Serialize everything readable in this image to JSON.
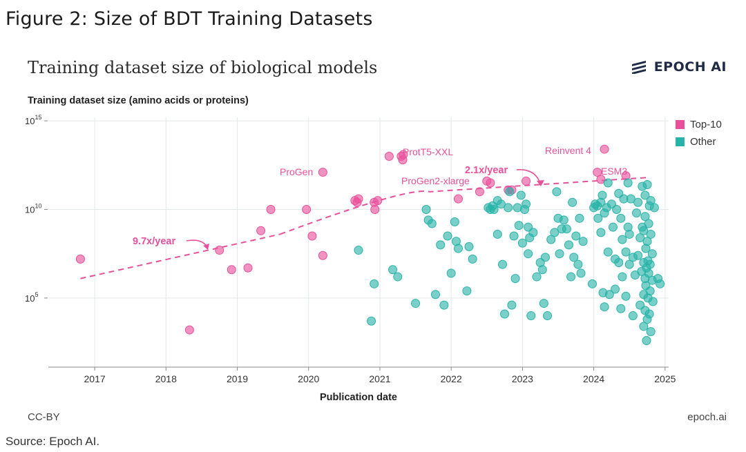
{
  "figure_title": "Figure 2: Size of BDT Training Datasets",
  "source_note": "Source: Epoch AI.",
  "brand_name": "EPOCH AI",
  "license": "CC-BY",
  "site": "epoch.ai",
  "colors": {
    "top10": "#e8509b",
    "other": "#28b3a8",
    "grid": "#e3e8e8",
    "axis": "#888888"
  },
  "chart_data": {
    "type": "scatter",
    "title": "Training dataset size of biological models",
    "ylabel": "Training dataset size (amino acids or proteins)",
    "xlabel": "Publication date",
    "yscale": "log10",
    "xlim": [
      2016.35,
      2025.05
    ],
    "ylim_log10": [
      1.1,
      15.2
    ],
    "x_ticks": [
      2017,
      2018,
      2019,
      2020,
      2021,
      2022,
      2023,
      2024,
      2025
    ],
    "x_tick_labels": [
      "2017",
      "2018",
      "2019",
      "2020",
      "2021",
      "2022",
      "2023",
      "2024",
      "2025"
    ],
    "y_ticks_log10": [
      5,
      10,
      15
    ],
    "y_tick_bases": [
      "10",
      "10",
      "10"
    ],
    "y_tick_exponents": [
      "5",
      "10",
      "15"
    ],
    "legend": [
      {
        "key": "top10",
        "label": "Top-10"
      },
      {
        "key": "other",
        "label": "Other"
      }
    ],
    "trend_lines": [
      {
        "label": "9.7x/year",
        "points": [
          [
            2016.8,
            6.1
          ],
          [
            2019.6,
            8.6
          ]
        ]
      },
      {
        "label": "2.1x/year",
        "points": [
          [
            2019.6,
            8.6
          ],
          [
            2021.7,
            11.0
          ],
          [
            2024.75,
            11.8
          ]
        ]
      }
    ],
    "annotations": [
      {
        "text": "ProGen",
        "x": 2020.2,
        "y_log10": 12.0
      },
      {
        "text": "ProtT5-XXL",
        "x": 2021.3,
        "y_log10": 13.4
      },
      {
        "text": "ProGen2-xlarge",
        "x": 2022.5,
        "y_log10": 11.8
      },
      {
        "text": "Reinvent 4",
        "x": 2024.1,
        "y_log10": 13.5
      },
      {
        "text": "ESM3",
        "x": 2024.0,
        "y_log10": 12.6
      }
    ],
    "series": [
      {
        "name": "Top-10",
        "key": "top10",
        "points": [
          [
            2016.8,
            7.2
          ],
          [
            2018.33,
            3.2
          ],
          [
            2018.75,
            7.7
          ],
          [
            2018.92,
            6.6
          ],
          [
            2019.15,
            6.7
          ],
          [
            2019.33,
            8.8
          ],
          [
            2019.47,
            10.0
          ],
          [
            2019.97,
            10.0
          ],
          [
            2020.05,
            8.5
          ],
          [
            2020.2,
            7.4
          ],
          [
            2020.2,
            12.1
          ],
          [
            2020.65,
            10.5
          ],
          [
            2020.68,
            10.4
          ],
          [
            2020.7,
            10.6
          ],
          [
            2020.92,
            10.4
          ],
          [
            2020.93,
            10.0
          ],
          [
            2020.97,
            10.5
          ],
          [
            2021.13,
            13.0
          ],
          [
            2021.3,
            13.0
          ],
          [
            2021.32,
            12.8
          ],
          [
            2021.33,
            13.1
          ],
          [
            2022.1,
            10.6
          ],
          [
            2022.4,
            11.0
          ],
          [
            2022.5,
            11.6
          ],
          [
            2022.55,
            11.5
          ],
          [
            2022.8,
            11.1
          ],
          [
            2022.85,
            11.1
          ],
          [
            2023.05,
            11.6
          ],
          [
            2024.05,
            12.1
          ],
          [
            2024.1,
            11.7
          ],
          [
            2024.15,
            13.4
          ],
          [
            2024.45,
            11.9
          ]
        ]
      },
      {
        "name": "Other",
        "key": "other",
        "points": [
          [
            2020.7,
            7.7
          ],
          [
            2020.88,
            3.7
          ],
          [
            2020.92,
            5.8
          ],
          [
            2021.18,
            6.6
          ],
          [
            2021.25,
            6.2
          ],
          [
            2021.5,
            4.7
          ],
          [
            2021.65,
            10.0
          ],
          [
            2021.68,
            9.4
          ],
          [
            2021.73,
            9.2
          ],
          [
            2021.78,
            5.2
          ],
          [
            2021.85,
            8.0
          ],
          [
            2021.9,
            4.6
          ],
          [
            2021.95,
            8.5
          ],
          [
            2022.0,
            6.4
          ],
          [
            2022.05,
            9.3
          ],
          [
            2022.07,
            8.2
          ],
          [
            2022.1,
            7.8
          ],
          [
            2022.22,
            5.4
          ],
          [
            2022.25,
            7.9
          ],
          [
            2022.3,
            7.2
          ],
          [
            2022.52,
            10.1
          ],
          [
            2022.55,
            10.0
          ],
          [
            2022.58,
            10.2
          ],
          [
            2022.6,
            10.0
          ],
          [
            2022.65,
            10.5
          ],
          [
            2022.65,
            8.6
          ],
          [
            2022.7,
            10.3
          ],
          [
            2022.72,
            6.9
          ],
          [
            2022.75,
            4.1
          ],
          [
            2022.8,
            10.1
          ],
          [
            2022.82,
            11.0
          ],
          [
            2022.85,
            4.6
          ],
          [
            2022.88,
            8.5
          ],
          [
            2022.9,
            6.1
          ],
          [
            2022.93,
            10.1
          ],
          [
            2022.95,
            9.1
          ],
          [
            2022.98,
            10.8
          ],
          [
            2023.0,
            8.1
          ],
          [
            2023.03,
            10.0
          ],
          [
            2023.05,
            10.3
          ],
          [
            2023.08,
            9.0
          ],
          [
            2023.08,
            7.5
          ],
          [
            2023.1,
            8.4
          ],
          [
            2023.12,
            4.0
          ],
          [
            2023.15,
            8.7
          ],
          [
            2023.2,
            6.2
          ],
          [
            2023.25,
            7.0
          ],
          [
            2023.28,
            6.6
          ],
          [
            2023.3,
            4.7
          ],
          [
            2023.32,
            7.3
          ],
          [
            2023.35,
            4.0
          ],
          [
            2023.4,
            8.3
          ],
          [
            2023.45,
            8.7
          ],
          [
            2023.48,
            11.0
          ],
          [
            2023.5,
            9.5
          ],
          [
            2023.52,
            7.5
          ],
          [
            2023.55,
            8.9
          ],
          [
            2023.58,
            9.4
          ],
          [
            2023.62,
            8.9
          ],
          [
            2023.65,
            8.0
          ],
          [
            2023.68,
            6.2
          ],
          [
            2023.7,
            10.4
          ],
          [
            2023.72,
            7.3
          ],
          [
            2023.75,
            8.5
          ],
          [
            2023.78,
            6.9
          ],
          [
            2023.8,
            9.5
          ],
          [
            2023.82,
            6.4
          ],
          [
            2023.85,
            8.2
          ],
          [
            2023.98,
            5.8
          ],
          [
            2024.0,
            10.1
          ],
          [
            2024.02,
            10.3
          ],
          [
            2024.05,
            10.2
          ],
          [
            2024.06,
            9.5
          ],
          [
            2024.1,
            10.4
          ],
          [
            2024.1,
            8.7
          ],
          [
            2024.12,
            10.8
          ],
          [
            2024.13,
            5.3
          ],
          [
            2024.15,
            4.5
          ],
          [
            2024.15,
            9.8
          ],
          [
            2024.18,
            10.1
          ],
          [
            2024.2,
            11.5
          ],
          [
            2024.2,
            7.6
          ],
          [
            2024.22,
            5.2
          ],
          [
            2024.25,
            10.3
          ],
          [
            2024.27,
            9.0
          ],
          [
            2024.3,
            7.2
          ],
          [
            2024.3,
            5.5
          ],
          [
            2024.32,
            10.0
          ],
          [
            2024.35,
            7.0
          ],
          [
            2024.35,
            10.9
          ],
          [
            2024.38,
            9.5
          ],
          [
            2024.38,
            4.4
          ],
          [
            2024.4,
            8.3
          ],
          [
            2024.4,
            6.2
          ],
          [
            2024.42,
            10.6
          ],
          [
            2024.45,
            7.6
          ],
          [
            2024.45,
            5.1
          ],
          [
            2024.48,
            9.0
          ],
          [
            2024.48,
            11.5
          ],
          [
            2024.5,
            6.9
          ],
          [
            2024.5,
            8.6
          ],
          [
            2024.52,
            10.6
          ],
          [
            2024.55,
            7.3
          ],
          [
            2024.55,
            4.0
          ],
          [
            2024.58,
            6.3
          ],
          [
            2024.6,
            9.8
          ],
          [
            2024.62,
            7.4
          ],
          [
            2024.62,
            10.4
          ],
          [
            2024.65,
            4.6
          ],
          [
            2024.65,
            8.4
          ],
          [
            2024.67,
            6.5
          ],
          [
            2024.68,
            9.0
          ],
          [
            2024.68,
            11.3
          ],
          [
            2024.7,
            5.2
          ],
          [
            2024.7,
            7.0
          ],
          [
            2024.7,
            8.8
          ],
          [
            2024.7,
            3.4
          ],
          [
            2024.72,
            9.6
          ],
          [
            2024.72,
            6.1
          ],
          [
            2024.72,
            10.8
          ],
          [
            2024.72,
            4.3
          ],
          [
            2024.73,
            7.8
          ],
          [
            2024.73,
            5.7
          ],
          [
            2024.74,
            6.7
          ],
          [
            2024.74,
            2.6
          ],
          [
            2024.75,
            8.2
          ],
          [
            2024.75,
            3.8
          ],
          [
            2024.75,
            11.4
          ],
          [
            2024.76,
            7.1
          ],
          [
            2024.76,
            5.0
          ],
          [
            2024.77,
            6.4
          ],
          [
            2024.77,
            9.2
          ],
          [
            2024.78,
            10.2
          ],
          [
            2024.78,
            4.1
          ],
          [
            2024.79,
            6.9
          ],
          [
            2024.79,
            5.4
          ],
          [
            2024.8,
            8.6
          ],
          [
            2024.8,
            3.1
          ],
          [
            2024.8,
            10.5
          ],
          [
            2024.82,
            6.0
          ],
          [
            2024.82,
            7.5
          ],
          [
            2024.83,
            4.8
          ],
          [
            2024.85,
            10.1
          ],
          [
            2024.9,
            6.1
          ],
          [
            2024.93,
            5.8
          ]
        ]
      }
    ]
  }
}
